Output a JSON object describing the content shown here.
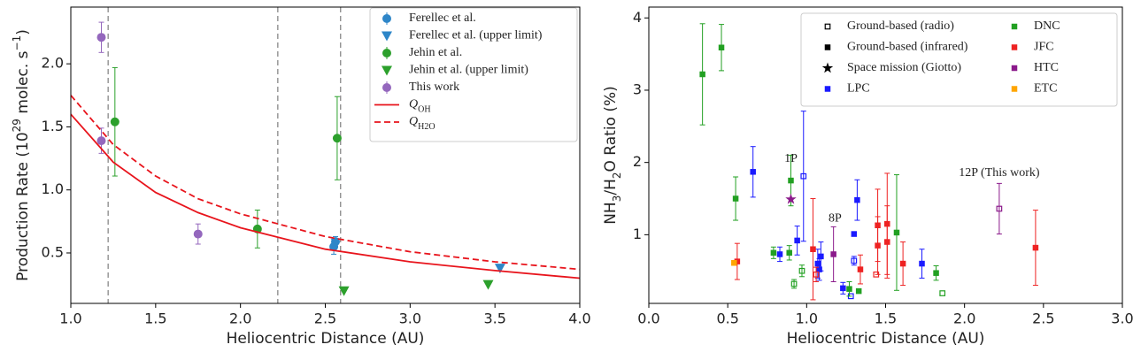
{
  "chart_data": [
    {
      "type": "scatter",
      "xlabel": "Heliocentric Distance (AU)",
      "ylabel": [
        "Production Rate (10",
        "29",
        " molec. s",
        "−1",
        ")"
      ],
      "ylabel_script": "super",
      "xlim": [
        1.0,
        4.0
      ],
      "xticks": [
        {
          "value": 1,
          "label": "1.0"
        },
        1.5,
        {
          "value": 2,
          "label": "2.0"
        },
        2.5,
        {
          "value": 3,
          "label": "3.0"
        },
        3.5,
        {
          "value": 4,
          "label": "4.0"
        }
      ],
      "ylim": [
        0.1,
        2.45
      ],
      "yticks": [
        0.5,
        {
          "value": 1,
          "label": "1.0"
        },
        1.5,
        {
          "value": 2,
          "label": "2.0"
        }
      ],
      "vlines": [
        1.22,
        2.22,
        2.59
      ],
      "legend": "upper right",
      "series": [
        {
          "name": "Ferellec et al.",
          "kind": "errorbar",
          "color": "#2e86c8",
          "x": [
            2.55,
            2.56
          ],
          "values": [
            0.55,
            0.59
          ],
          "errors": [
            0.06,
            0.04
          ]
        },
        {
          "name": "Ferellec et al. (upper limit)",
          "kind": "upper",
          "color": "#2e86c8",
          "x": [
            3.53
          ],
          "values": [
            0.38
          ]
        },
        {
          "name": "Jehin et al.",
          "kind": "errorbar",
          "color": "#2ca02c",
          "x": [
            1.26,
            2.1,
            2.57
          ],
          "values": [
            1.54,
            0.69,
            1.41
          ],
          "errors": [
            0.43,
            0.15,
            0.33
          ]
        },
        {
          "name": "Jehin et al. (upper limit)",
          "kind": "upper",
          "color": "#2ca02c",
          "x": [
            2.61,
            3.46
          ],
          "values": [
            0.2,
            0.25
          ]
        },
        {
          "name": "This work",
          "kind": "errorbar",
          "color": "#9467bd",
          "x": [
            1.18,
            1.18,
            1.75
          ],
          "values": [
            2.21,
            1.39,
            0.65
          ],
          "errors": [
            0.12,
            0.1,
            0.08
          ]
        },
        {
          "name": "Q",
          "name_sub": "OH",
          "kind": "line",
          "dashed": false,
          "color": "#e8141c",
          "x": [
            1.0,
            1.25,
            1.5,
            1.75,
            2.0,
            2.5,
            3.0,
            3.5,
            4.0
          ],
          "values": [
            1.6,
            1.22,
            0.98,
            0.82,
            0.7,
            0.53,
            0.43,
            0.36,
            0.3
          ]
        },
        {
          "name": "Q",
          "name_sub": "H2O",
          "kind": "line",
          "dashed": true,
          "color": "#e8141c",
          "x": [
            1.0,
            1.25,
            1.5,
            1.75,
            2.0,
            2.5,
            3.0,
            3.5,
            4.0
          ],
          "values": [
            1.75,
            1.36,
            1.11,
            0.93,
            0.81,
            0.63,
            0.51,
            0.43,
            0.37
          ]
        }
      ]
    },
    {
      "type": "scatter",
      "xlabel": "Heliocentric Distance (AU)",
      "ylabel": [
        "NH",
        "3",
        "/H",
        "2",
        "O Ratio (%)"
      ],
      "ylabel_script": "sub",
      "xlim": [
        0.0,
        3.0
      ],
      "xticks": [
        {
          "value": 0,
          "label": "0.0"
        },
        0.5,
        {
          "value": 1,
          "label": "1.0"
        },
        1.5,
        {
          "value": 2,
          "label": "2.0"
        },
        2.5,
        {
          "value": 3,
          "label": "3.0"
        }
      ],
      "ylim": [
        0.05,
        4.15
      ],
      "yticks": [
        1,
        2,
        3,
        4
      ],
      "legend": "upper right",
      "marker_types": [
        {
          "label": "Ground-based (radio)",
          "shape": "open-square"
        },
        {
          "label": "Ground-based (infrared)",
          "shape": "square"
        },
        {
          "label": "Space mission (Giotto)",
          "shape": "star"
        }
      ],
      "series": [
        {
          "name": "LPC",
          "kind": "points",
          "color": "#1a1aff",
          "x": [
            0.66,
            0.83,
            0.94,
            1.07,
            1.09,
            1.08,
            1.23,
            1.32,
            1.3,
            1.73,
            0.98,
            1.3,
            1.28
          ],
          "values": [
            1.87,
            0.73,
            0.92,
            0.6,
            0.7,
            0.52,
            0.26,
            1.48,
            1.01,
            0.6,
            1.81,
            0.64,
            0.15
          ],
          "errors": [
            0.35,
            0.1,
            0.2,
            0.2,
            0.2,
            0.15,
            0.08,
            0.28,
            null,
            0.2,
            0.9,
            0.06,
            null
          ],
          "markers": [
            1,
            1,
            1,
            1,
            1,
            1,
            1,
            1,
            1,
            1,
            0,
            0,
            0
          ]
        },
        {
          "name": "DNC",
          "kind": "points",
          "color": "#22a022",
          "x": [
            0.34,
            0.46,
            0.55,
            0.79,
            0.89,
            0.9,
            1.27,
            1.33,
            1.57,
            1.82,
            0.92,
            0.97,
            1.86
          ],
          "values": [
            3.22,
            3.59,
            1.5,
            0.75,
            0.75,
            1.75,
            0.25,
            0.22,
            1.03,
            0.47,
            0.32,
            0.5,
            0.19
          ],
          "errors": [
            0.7,
            0.32,
            0.3,
            0.08,
            0.1,
            0.35,
            0.1,
            null,
            0.8,
            0.1,
            0.06,
            0.08,
            null
          ],
          "markers": [
            1,
            1,
            1,
            1,
            1,
            1,
            1,
            1,
            1,
            1,
            0,
            0,
            0
          ]
        },
        {
          "name": "JFC",
          "kind": "points",
          "color": "#ee2222",
          "x": [
            0.56,
            1.04,
            1.34,
            1.45,
            1.45,
            1.51,
            1.51,
            1.61,
            2.45,
            1.06,
            1.44
          ],
          "values": [
            0.63,
            0.8,
            0.52,
            0.85,
            1.13,
            1.15,
            0.9,
            0.6,
            0.82,
            0.45,
            0.45
          ],
          "errors": [
            0.25,
            0.7,
            0.2,
            0.4,
            0.5,
            0.7,
            0.5,
            0.3,
            0.52,
            0.1,
            null
          ],
          "markers": [
            1,
            1,
            1,
            1,
            1,
            1,
            1,
            1,
            1,
            0,
            0
          ]
        },
        {
          "name": "HTC",
          "kind": "points",
          "color": "#8b1a8b",
          "x": [
            1.17,
            2.22,
            0.9
          ],
          "values": [
            0.73,
            1.36,
            1.49
          ],
          "errors": [
            0.38,
            0.35,
            null
          ],
          "markers": [
            1,
            0,
            2
          ]
        },
        {
          "name": "ETC",
          "kind": "points",
          "color": "#ffa500",
          "x": [
            0.54
          ],
          "values": [
            0.61
          ],
          "errors": [
            null
          ],
          "markers": [
            1
          ]
        }
      ],
      "annotations": [
        {
          "text": "1P",
          "x": 0.9,
          "y": 2.05,
          "color": "#8b1a8b"
        },
        {
          "text": "8P",
          "x": 1.18,
          "y": 1.22,
          "color": "#8b1a8b"
        },
        {
          "text": "12P (This work)",
          "x": 2.22,
          "y": 1.85,
          "color": "#8b1a8b"
        }
      ]
    }
  ]
}
